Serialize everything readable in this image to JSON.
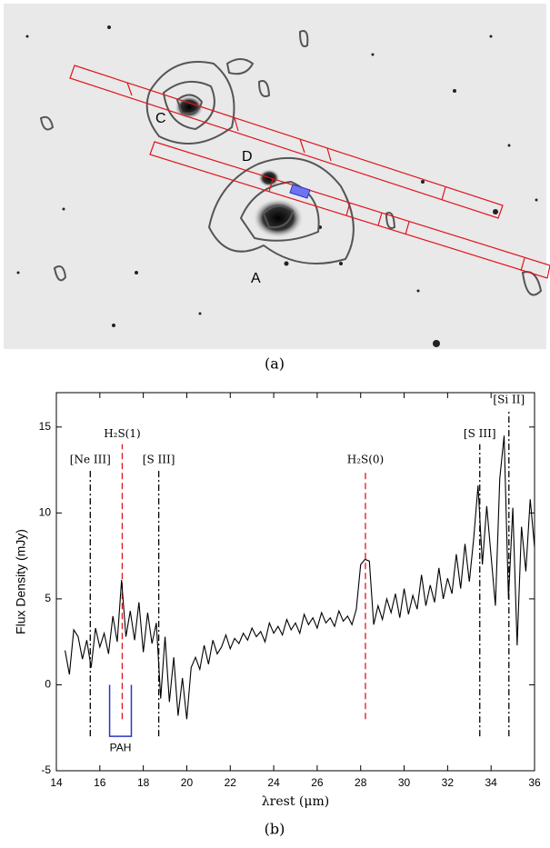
{
  "panel_a": {
    "labels": [
      "C",
      "D",
      "A"
    ],
    "caption": "(a)"
  },
  "panel_b": {
    "caption": "(b)"
  },
  "chart_data": {
    "type": "line",
    "x_label": "λrest (μm)",
    "y_label": "Flux Density (mJy)",
    "xlim": [
      14,
      36
    ],
    "ylim": [
      -5,
      17
    ],
    "xticks": [
      14,
      16,
      18,
      20,
      22,
      24,
      26,
      28,
      30,
      32,
      34,
      36
    ],
    "yticks": [
      -5,
      0,
      5,
      10,
      15
    ],
    "x": [
      14.4,
      14.6,
      14.8,
      15.0,
      15.2,
      15.4,
      15.6,
      15.8,
      16.0,
      16.2,
      16.4,
      16.6,
      16.8,
      17.0,
      17.2,
      17.4,
      17.6,
      17.8,
      18.0,
      18.2,
      18.4,
      18.6,
      18.8,
      19.0,
      19.2,
      19.4,
      19.6,
      19.8,
      20.0,
      20.2,
      20.4,
      20.6,
      20.8,
      21.0,
      21.2,
      21.4,
      21.6,
      21.8,
      22.0,
      22.2,
      22.4,
      22.6,
      22.8,
      23.0,
      23.2,
      23.4,
      23.6,
      23.8,
      24.0,
      24.2,
      24.4,
      24.6,
      24.8,
      25.0,
      25.2,
      25.4,
      25.6,
      25.8,
      26.0,
      26.2,
      26.4,
      26.6,
      26.8,
      27.0,
      27.2,
      27.4,
      27.6,
      27.8,
      28.0,
      28.2,
      28.4,
      28.6,
      28.8,
      29.0,
      29.2,
      29.4,
      29.6,
      29.8,
      30.0,
      30.2,
      30.4,
      30.6,
      30.8,
      31.0,
      31.2,
      31.4,
      31.6,
      31.8,
      32.0,
      32.2,
      32.4,
      32.6,
      32.8,
      33.0,
      33.2,
      33.4,
      33.6,
      33.8,
      34.0,
      34.2,
      34.4,
      34.6,
      34.8,
      35.0,
      35.2,
      35.4,
      35.6,
      35.8,
      36.0
    ],
    "series": [
      {
        "name": "spectrum",
        "color": "#000000",
        "values": [
          2.0,
          0.6,
          3.2,
          2.8,
          1.5,
          2.6,
          1.0,
          3.3,
          2.2,
          3.0,
          1.8,
          4.0,
          2.5,
          6.1,
          2.8,
          4.3,
          2.6,
          4.8,
          1.9,
          4.2,
          2.4,
          3.6,
          -0.8,
          2.8,
          -1.0,
          1.6,
          -1.8,
          0.4,
          -2.0,
          1.0,
          1.6,
          0.9,
          2.3,
          1.2,
          2.6,
          1.8,
          2.2,
          2.9,
          2.1,
          2.7,
          2.4,
          3.0,
          2.6,
          3.3,
          2.8,
          3.1,
          2.5,
          3.6,
          3.0,
          3.4,
          2.9,
          3.8,
          3.2,
          3.6,
          3.0,
          4.1,
          3.5,
          3.9,
          3.3,
          4.2,
          3.6,
          3.9,
          3.4,
          4.3,
          3.7,
          4.0,
          3.5,
          4.4,
          7.0,
          7.3,
          7.2,
          3.5,
          4.6,
          3.8,
          5.0,
          4.2,
          5.3,
          3.9,
          5.6,
          4.1,
          5.2,
          4.4,
          6.4,
          4.6,
          5.8,
          4.8,
          6.8,
          5.0,
          6.2,
          5.3,
          7.6,
          5.6,
          8.2,
          6.0,
          8.5,
          11.6,
          7.0,
          10.4,
          7.5,
          4.6,
          12.0,
          14.5,
          5.0,
          10.3,
          2.3,
          9.2,
          6.6,
          10.8,
          8.0
        ]
      }
    ],
    "annotations": [
      {
        "label": "[Ne III]",
        "x": 15.56,
        "y": [
          -3,
          12.5
        ],
        "color": "#000000",
        "style": "dashdot"
      },
      {
        "label": "H₂S(1)",
        "x": 17.03,
        "y": [
          -2,
          14
        ],
        "color": "#e0141e",
        "style": "dashed"
      },
      {
        "label": "[S III]",
        "x": 18.71,
        "y": [
          -3,
          12.5
        ],
        "color": "#000000",
        "style": "dashdot"
      },
      {
        "label": "H₂S(0)",
        "x": 28.22,
        "y": [
          -2,
          12.5
        ],
        "color": "#e0141e",
        "style": "dashed"
      },
      {
        "label": "[S III]",
        "x": 33.48,
        "y": [
          -3,
          14
        ],
        "color": "#000000",
        "style": "dashdot"
      },
      {
        "label": "[Si II]",
        "x": 34.82,
        "y": [
          -3,
          16
        ],
        "color": "#000000",
        "style": "dashdot"
      }
    ],
    "pah": {
      "label": "PAH",
      "x": [
        16.45,
        17.45
      ],
      "y": [
        -3,
        0
      ],
      "color": "#2b35c8"
    }
  }
}
